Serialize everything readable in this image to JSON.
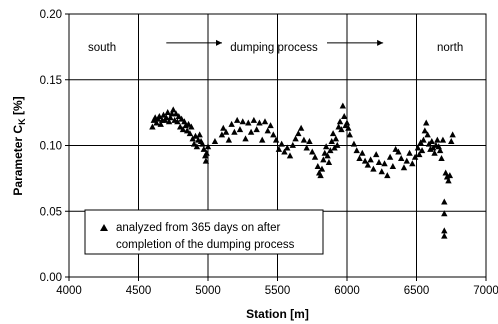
{
  "chart_data": {
    "type": "scatter",
    "xlabel": "Station [m]",
    "ylabel_main": "Parameter C",
    "ylabel_sub": "K",
    "ylabel_unit": " [%]",
    "xlim": [
      4000,
      7000
    ],
    "ylim": [
      0.0,
      0.2
    ],
    "x_ticks": [
      "4000",
      "4500",
      "5000",
      "5500",
      "6000",
      "6500",
      "7000"
    ],
    "y_ticks": [
      "0.00",
      "0.05",
      "0.10",
      "0.15",
      "0.20"
    ],
    "grid": true,
    "region_labels": {
      "south": "south",
      "process": "dumping process",
      "north": "north"
    },
    "region_boundaries": [
      4500,
      6500
    ],
    "process_arrow": {
      "from": 4700,
      "to": 6260,
      "y": 0.178
    },
    "legend": {
      "line1": "analyzed from 365 days on after",
      "line2": "completion of the dumping process",
      "marker": "triangle"
    },
    "marker_color": "#000000",
    "series": [
      {
        "name": "analyzed from 365 days on after completion of the dumping process",
        "points": [
          [
            4600,
            0.114
          ],
          [
            4610,
            0.119
          ],
          [
            4620,
            0.121
          ],
          [
            4630,
            0.117
          ],
          [
            4640,
            0.12
          ],
          [
            4650,
            0.122
          ],
          [
            4660,
            0.116
          ],
          [
            4670,
            0.119
          ],
          [
            4680,
            0.123
          ],
          [
            4690,
            0.119
          ],
          [
            4700,
            0.121
          ],
          [
            4710,
            0.125
          ],
          [
            4720,
            0.118
          ],
          [
            4730,
            0.121
          ],
          [
            4740,
            0.124
          ],
          [
            4750,
            0.127
          ],
          [
            4760,
            0.119
          ],
          [
            4770,
            0.124
          ],
          [
            4780,
            0.118
          ],
          [
            4790,
            0.122
          ],
          [
            4800,
            0.114
          ],
          [
            4810,
            0.12
          ],
          [
            4820,
            0.112
          ],
          [
            4830,
            0.118
          ],
          [
            4840,
            0.115
          ],
          [
            4850,
            0.111
          ],
          [
            4860,
            0.116
          ],
          [
            4870,
            0.109
          ],
          [
            4880,
            0.114
          ],
          [
            4890,
            0.105
          ],
          [
            4900,
            0.101
          ],
          [
            4910,
            0.107
          ],
          [
            4920,
            0.099
          ],
          [
            4930,
            0.104
          ],
          [
            4940,
            0.108
          ],
          [
            4950,
            0.103
          ],
          [
            4960,
            0.101
          ],
          [
            4970,
            0.097
          ],
          [
            4980,
            0.092
          ],
          [
            4985,
            0.088
          ],
          [
            4990,
            0.094
          ],
          [
            5000,
            0.099
          ],
          [
            5050,
            0.103
          ],
          [
            5100,
            0.108
          ],
          [
            5110,
            0.113
          ],
          [
            5130,
            0.11
          ],
          [
            5150,
            0.104
          ],
          [
            5170,
            0.116
          ],
          [
            5190,
            0.11
          ],
          [
            5210,
            0.119
          ],
          [
            5230,
            0.112
          ],
          [
            5250,
            0.118
          ],
          [
            5270,
            0.105
          ],
          [
            5290,
            0.117
          ],
          [
            5310,
            0.11
          ],
          [
            5330,
            0.119
          ],
          [
            5350,
            0.112
          ],
          [
            5370,
            0.117
          ],
          [
            5390,
            0.104
          ],
          [
            5410,
            0.118
          ],
          [
            5430,
            0.111
          ],
          [
            5450,
            0.115
          ],
          [
            5470,
            0.108
          ],
          [
            5490,
            0.104
          ],
          [
            5510,
            0.097
          ],
          [
            5530,
            0.101
          ],
          [
            5550,
            0.095
          ],
          [
            5570,
            0.098
          ],
          [
            5590,
            0.092
          ],
          [
            5610,
            0.1
          ],
          [
            5630,
            0.105
          ],
          [
            5650,
            0.109
          ],
          [
            5670,
            0.113
          ],
          [
            5690,
            0.104
          ],
          [
            5710,
            0.098
          ],
          [
            5730,
            0.103
          ],
          [
            5750,
            0.095
          ],
          [
            5770,
            0.091
          ],
          [
            5790,
            0.084
          ],
          [
            5800,
            0.079
          ],
          [
            5810,
            0.077
          ],
          [
            5820,
            0.082
          ],
          [
            5830,
            0.089
          ],
          [
            5840,
            0.094
          ],
          [
            5850,
            0.099
          ],
          [
            5860,
            0.092
          ],
          [
            5870,
            0.087
          ],
          [
            5880,
            0.096
          ],
          [
            5890,
            0.103
          ],
          [
            5900,
            0.109
          ],
          [
            5910,
            0.098
          ],
          [
            5920,
            0.105
          ],
          [
            5930,
            0.1
          ],
          [
            5940,
            0.114
          ],
          [
            5950,
            0.118
          ],
          [
            5960,
            0.112
          ],
          [
            5970,
            0.13
          ],
          [
            5980,
            0.122
          ],
          [
            5990,
            0.115
          ],
          [
            6000,
            0.117
          ],
          [
            6010,
            0.113
          ],
          [
            6020,
            0.108
          ],
          [
            6050,
            0.101
          ],
          [
            6070,
            0.096
          ],
          [
            6090,
            0.09
          ],
          [
            6110,
            0.094
          ],
          [
            6130,
            0.088
          ],
          [
            6150,
            0.085
          ],
          [
            6170,
            0.089
          ],
          [
            6190,
            0.082
          ],
          [
            6210,
            0.093
          ],
          [
            6230,
            0.087
          ],
          [
            6250,
            0.08
          ],
          [
            6270,
            0.086
          ],
          [
            6290,
            0.077
          ],
          [
            6310,
            0.091
          ],
          [
            6330,
            0.084
          ],
          [
            6350,
            0.097
          ],
          [
            6370,
            0.095
          ],
          [
            6390,
            0.09
          ],
          [
            6410,
            0.083
          ],
          [
            6430,
            0.088
          ],
          [
            6450,
            0.094
          ],
          [
            6470,
            0.086
          ],
          [
            6490,
            0.091
          ],
          [
            6510,
            0.098
          ],
          [
            6520,
            0.093
          ],
          [
            6530,
            0.102
          ],
          [
            6540,
            0.096
          ],
          [
            6550,
            0.104
          ],
          [
            6560,
            0.111
          ],
          [
            6570,
            0.117
          ],
          [
            6580,
            0.108
          ],
          [
            6590,
            0.101
          ],
          [
            6600,
            0.097
          ],
          [
            6610,
            0.103
          ],
          [
            6620,
            0.098
          ],
          [
            6630,
            0.094
          ],
          [
            6640,
            0.1
          ],
          [
            6650,
            0.104
          ],
          [
            6660,
            0.099
          ],
          [
            6670,
            0.096
          ],
          [
            6680,
            0.09
          ],
          [
            6690,
            0.104
          ],
          [
            6700,
            0.057
          ],
          [
            6700,
            0.048
          ],
          [
            6700,
            0.035
          ],
          [
            6700,
            0.031
          ],
          [
            6710,
            0.079
          ],
          [
            6720,
            0.076
          ],
          [
            6730,
            0.073
          ],
          [
            6740,
            0.077
          ],
          [
            6750,
            0.103
          ],
          [
            6760,
            0.108
          ]
        ]
      }
    ]
  }
}
